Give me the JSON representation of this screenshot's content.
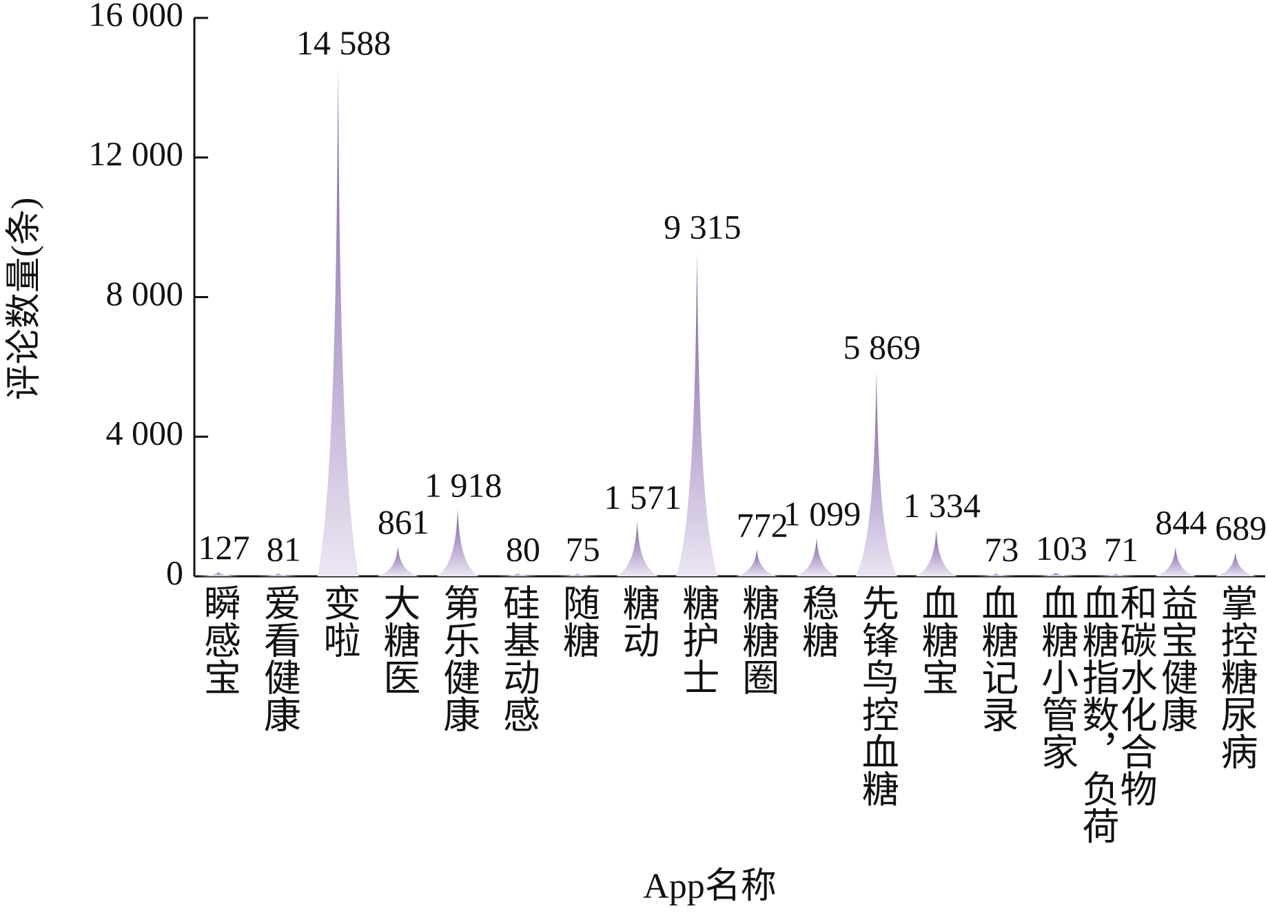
{
  "chart_data": {
    "type": "spike",
    "y_label": "评论数量(条)",
    "x_label": "App名称",
    "categories": [
      "瞬感宝",
      "爱看健康",
      "变啦",
      "大糖医",
      "第乐健康",
      "硅基动感",
      "随糖",
      "糖动",
      "糖护士",
      "糖糖圈",
      "稳糖",
      "先锋鸟控血糖",
      "血糖宝",
      "血糖记录",
      "血糖小管家",
      "血糖指数，负荷和碳水化合物",
      "益宝健康",
      "掌控糖尿病"
    ],
    "values": [
      127,
      81,
      14588,
      861,
      1918,
      80,
      75,
      1571,
      9315,
      772,
      1099,
      5869,
      1334,
      73,
      103,
      71,
      844,
      689
    ],
    "value_labels": [
      "127",
      "81",
      "14 588",
      "861",
      "1 918",
      "80",
      "75",
      "1 571",
      "9 315",
      "772",
      "1 099",
      "5 869",
      "1 334",
      "73",
      "103",
      "71",
      "844",
      "689"
    ],
    "color": "#7a58a6",
    "ylim": [
      0,
      16000
    ],
    "yticks": [
      {
        "value": 0,
        "label": "0"
      },
      {
        "value": 4000,
        "label": "4 000"
      },
      {
        "value": 8000,
        "label": "8 000"
      },
      {
        "value": 12000,
        "label": "12 000"
      },
      {
        "value": 16000,
        "label": "16 000"
      }
    ]
  }
}
